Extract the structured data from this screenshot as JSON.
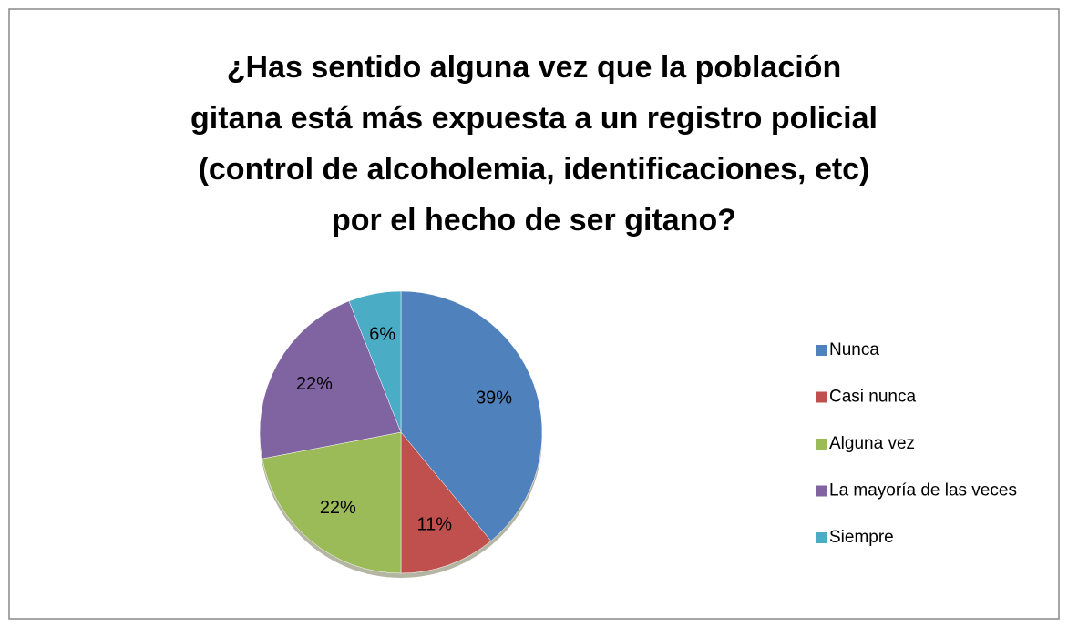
{
  "chart_data": {
    "type": "pie",
    "title": [
      "¿Has sentido alguna vez que la población",
      "gitana está más expuesta a un registro policial",
      "(control de alcoholemia, identificaciones, etc)",
      "por el hecho de ser gitano?"
    ],
    "categories": [
      "Nunca",
      "Casi nunca",
      "Alguna vez",
      "La mayoría de las veces",
      "Siempre"
    ],
    "values": [
      39,
      11,
      22,
      22,
      6
    ],
    "value_labels": [
      "39%",
      "11%",
      "22%",
      "22%",
      "6%"
    ],
    "colors": [
      "#4f81bd",
      "#c0504d",
      "#9bbb59",
      "#8064a2",
      "#4bacc6"
    ],
    "legend": "right"
  }
}
